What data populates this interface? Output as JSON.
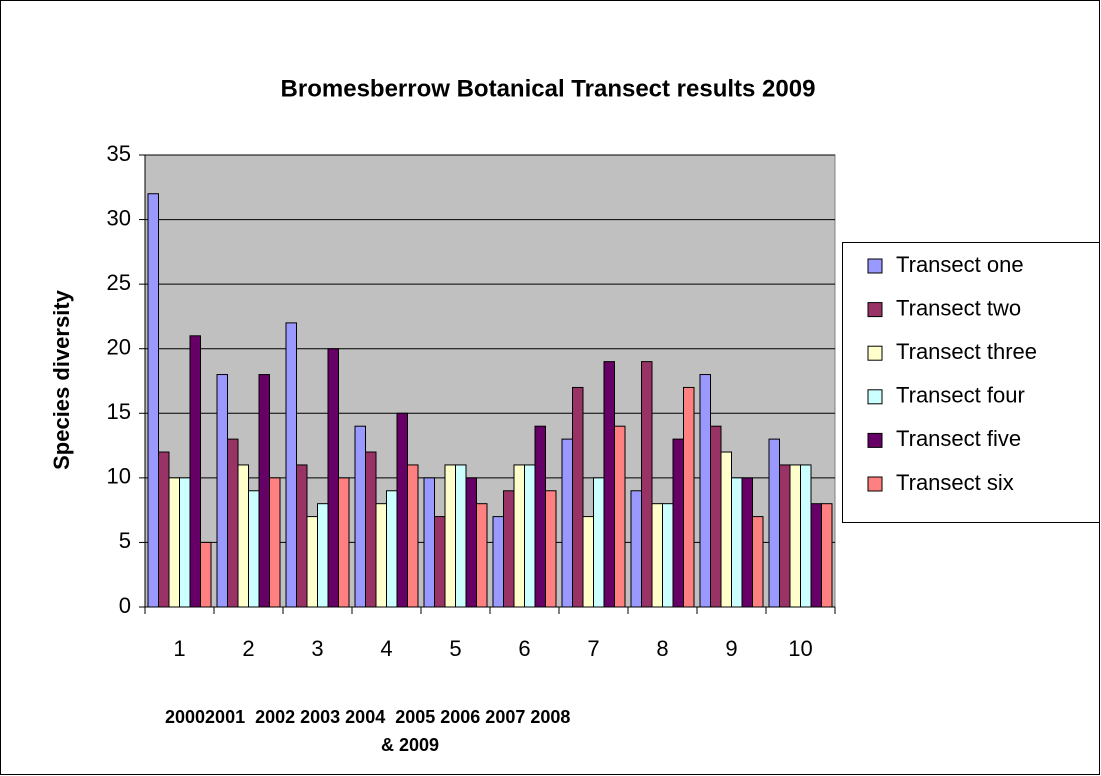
{
  "chart_data": {
    "type": "bar",
    "title": "Bromesberrow Botanical Transect results 2009",
    "y_label": "Species diversity",
    "x_label": [
      "20002001  2002 2003 2004  2005 2006 2007 2008",
      "& 2009"
    ],
    "categories": [
      "1",
      "2",
      "3",
      "4",
      "5",
      "6",
      "7",
      "8",
      "9",
      "10"
    ],
    "series": [
      {
        "name": "Transect one",
        "color": "#9999ff",
        "values": [
          32,
          18,
          22,
          14,
          10,
          7,
          13,
          9,
          18,
          13
        ]
      },
      {
        "name": "Transect two",
        "color": "#993366",
        "values": [
          12,
          13,
          11,
          12,
          7,
          9,
          17,
          19,
          14,
          11
        ]
      },
      {
        "name": "Transect three",
        "color": "#ffffcc",
        "values": [
          10,
          11,
          7,
          8,
          11,
          11,
          7,
          8,
          12,
          11
        ]
      },
      {
        "name": "Transect four",
        "color": "#ccffff",
        "values": [
          10,
          9,
          8,
          9,
          11,
          11,
          10,
          8,
          10,
          11
        ]
      },
      {
        "name": "Transect five",
        "color": "#660066",
        "values": [
          21,
          18,
          20,
          15,
          10,
          14,
          19,
          13,
          10,
          8
        ]
      },
      {
        "name": "Transect six",
        "color": "#ff8080",
        "values": [
          5,
          10,
          10,
          11,
          8,
          9,
          14,
          17,
          7,
          8
        ]
      }
    ],
    "ylim": [
      0,
      35
    ],
    "yticks": [
      0,
      5,
      10,
      15,
      20,
      25,
      30,
      35
    ],
    "grid": true,
    "plot_background": "#c0c0c0",
    "legend": "right"
  }
}
